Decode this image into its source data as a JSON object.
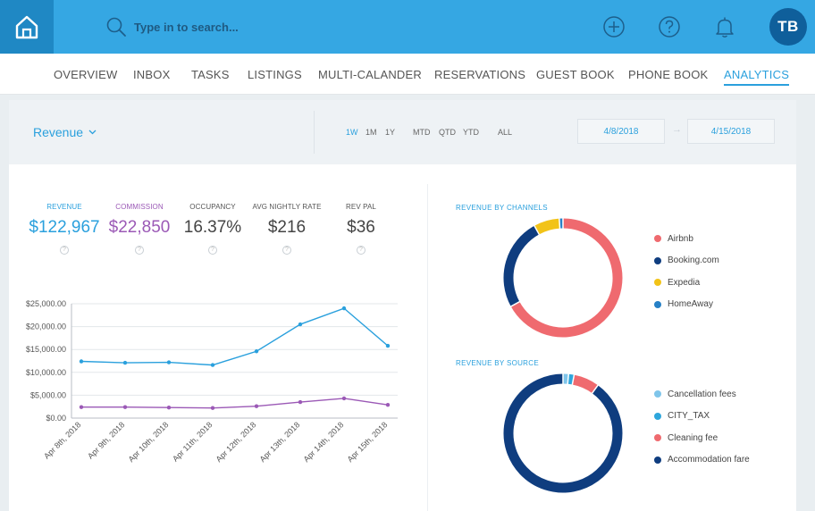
{
  "header": {
    "search_placeholder": "Type in to search...",
    "avatar_initials": "TB"
  },
  "nav": {
    "items": [
      "OVERVIEW",
      "INBOX",
      "TASKS",
      "LISTINGS",
      "MULTI-CALANDER",
      "RESERVATIONS",
      "GUEST BOOK",
      "PHONE BOOK",
      "ANALYTICS"
    ],
    "active": "ANALYTICS"
  },
  "filters": {
    "metric_label": "Revenue",
    "ranges": [
      "1W",
      "1M",
      "1Y",
      "MTD",
      "QTD",
      "YTD",
      "ALL"
    ],
    "active_range": "1W",
    "date_from": "4/8/2018",
    "date_to": "4/15/2018"
  },
  "kpis": [
    {
      "label": "REVENUE",
      "value": "$122,967",
      "color": "#2aa0dd"
    },
    {
      "label": "COMMISSION",
      "value": "$22,850",
      "color": "#9b59b6"
    },
    {
      "label": "OCCUPANCY",
      "value": "16.37%",
      "color": "#444444"
    },
    {
      "label": "AVG NIGHTLY RATE",
      "value": "$216",
      "color": "#444444"
    },
    {
      "label": "REV PAL",
      "value": "$36",
      "color": "#444444"
    }
  ],
  "chart_data": [
    {
      "type": "line",
      "categories": [
        "Apr 8th, 2018",
        "Apr 9th, 2018",
        "Apr 10th, 2018",
        "Apr 11th, 2018",
        "Apr 12th, 2018",
        "Apr 13th, 2018",
        "Apr 14th, 2018",
        "Apr 15th, 2018"
      ],
      "yticks": [
        "$0.00",
        "$5,000.00",
        "$10,000.00",
        "$15,000.00",
        "$20,000.00",
        "$25,000.00"
      ],
      "ylim": [
        0,
        25000
      ],
      "grid": true,
      "series": [
        {
          "color": "#2aa0dd",
          "values": [
            12400,
            12100,
            12200,
            11600,
            14600,
            20500,
            24000,
            15800
          ]
        },
        {
          "color": "#9b59b6",
          "values": [
            2400,
            2400,
            2300,
            2200,
            2600,
            3500,
            4300,
            2900
          ]
        }
      ]
    },
    {
      "type": "pie",
      "title": "REVENUE BY CHANNELS",
      "labels": [
        "Airbnb",
        "Booking.com",
        "Expedia",
        "HomeAway"
      ],
      "values": [
        67,
        25,
        7,
        1
      ],
      "colors": [
        "#ef6a6f",
        "#0f3d7f",
        "#f2c318",
        "#2680c6"
      ],
      "legend": "right"
    },
    {
      "type": "pie",
      "title": "REVENUE BY SOURCE",
      "labels": [
        "Cancellation fees",
        "CITY_TAX",
        "Cleaning fee",
        "Accommodation fare"
      ],
      "values": [
        1.5,
        1.5,
        7,
        90
      ],
      "colors": [
        "#7fc5ea",
        "#2ea6dc",
        "#ef6a6f",
        "#0f3d7f"
      ],
      "legend": "right"
    }
  ]
}
